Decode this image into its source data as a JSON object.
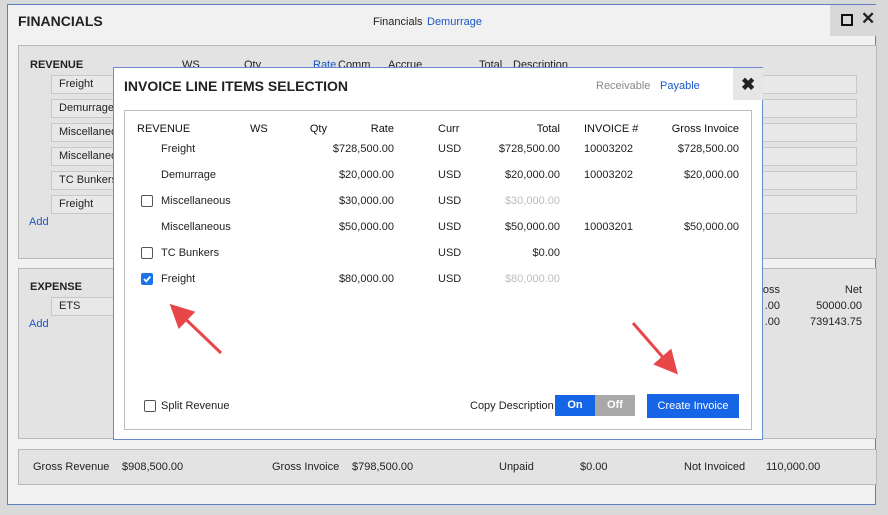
{
  "window": {
    "title": "FINANCIALS",
    "tabs": [
      {
        "label": "Financials",
        "color": "#222222"
      },
      {
        "label": "Demurrage",
        "color": "#1a56c8"
      }
    ]
  },
  "revenue_section": {
    "title": "REVENUE",
    "columns": [
      "WS",
      "Qty",
      "Rate",
      "Comm",
      "Accrue",
      "Total",
      "Description"
    ],
    "items": [
      "Freight",
      "Demurrage",
      "Miscellaneo",
      "Miscellaneo",
      "TC Bunkers",
      "Freight"
    ],
    "add": "Add"
  },
  "expense_section": {
    "title": "EXPENSE",
    "items": [
      "ETS"
    ],
    "add": "Add",
    "right_headers": [
      "ross",
      "Net"
    ],
    "right_rows": [
      [
        ".00",
        "50000.00"
      ],
      [
        ".00",
        "739143.75"
      ]
    ]
  },
  "summary": [
    {
      "label": "Gross Revenue",
      "value": "$908,500.00"
    },
    {
      "label": "Gross Invoice",
      "value": "$798,500.00"
    },
    {
      "label": "Unpaid",
      "value": "$0.00"
    },
    {
      "label": "Not Invoiced",
      "value": "110,000.00"
    }
  ],
  "modal": {
    "title": "INVOICE LINE ITEMS SELECTION",
    "tabs": [
      {
        "label": "Receivable",
        "color": "#8a8a8a"
      },
      {
        "label": "Payable",
        "color": "#1a56c8"
      }
    ],
    "close": "✖",
    "columns": {
      "revenue": "REVENUE",
      "ws": "WS",
      "qty": "Qty",
      "rate": "Rate",
      "curr": "Curr",
      "total": "Total",
      "invoice": "INVOICE #",
      "gross_invoice": "Gross Invoice"
    },
    "rows": [
      {
        "revenue": "Freight",
        "rate": "$728,500.00",
        "curr": "USD",
        "total": "$728,500.00",
        "invoice": "10003202",
        "gross_invoice": "$728,500.00"
      },
      {
        "revenue": "Demurrage",
        "rate": "$20,000.00",
        "curr": "USD",
        "total": "$20,000.00",
        "invoice": "10003202",
        "gross_invoice": "$20,000.00"
      },
      {
        "checked": false,
        "revenue": "Miscellaneous",
        "rate": "$30,000.00",
        "curr": "USD",
        "total": "$30,000.00",
        "total_muted": true
      },
      {
        "revenue": "Miscellaneous",
        "rate": "$50,000.00",
        "curr": "USD",
        "total": "$50,000.00",
        "invoice": "10003201",
        "gross_invoice": "$50,000.00"
      },
      {
        "checked": false,
        "revenue": "TC Bunkers",
        "curr": "USD",
        "total": "$0.00"
      },
      {
        "checked": true,
        "revenue": "Freight",
        "rate": "$80,000.00",
        "curr": "USD",
        "total": "$80,000.00",
        "total_muted": true
      }
    ],
    "split_revenue": {
      "label": "Split Revenue",
      "checked": false
    },
    "copy_description": {
      "label": "Copy Description",
      "options": [
        "On",
        "Off"
      ],
      "selected": "On"
    },
    "create_button": "Create Invoice"
  }
}
